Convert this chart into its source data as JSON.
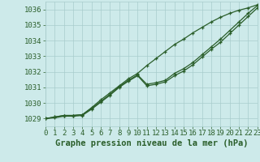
{
  "title": "Graphe pression niveau de la mer (hPa)",
  "xlim": [
    0,
    23
  ],
  "ylim": [
    1028.5,
    1036.5
  ],
  "yticks": [
    1029,
    1030,
    1031,
    1032,
    1033,
    1034,
    1035,
    1036
  ],
  "xticks": [
    0,
    1,
    2,
    3,
    4,
    5,
    6,
    7,
    8,
    9,
    10,
    11,
    12,
    13,
    14,
    15,
    16,
    17,
    18,
    19,
    20,
    21,
    22,
    23
  ],
  "bg_color": "#cdeaea",
  "grid_color": "#a8cccc",
  "line_color": "#2a5e2a",
  "series_straight": [
    1029.0,
    1029.1,
    1029.2,
    1029.2,
    1029.25,
    1029.7,
    1030.2,
    1030.65,
    1031.1,
    1031.55,
    1031.9,
    1032.4,
    1032.85,
    1033.3,
    1033.75,
    1034.1,
    1034.5,
    1034.85,
    1035.2,
    1035.5,
    1035.75,
    1035.95,
    1036.1,
    1036.3
  ],
  "series_mid": [
    1029.0,
    1029.1,
    1029.2,
    1029.2,
    1029.25,
    1029.65,
    1030.1,
    1030.55,
    1031.05,
    1031.45,
    1031.8,
    1031.2,
    1031.3,
    1031.45,
    1031.9,
    1032.2,
    1032.6,
    1033.1,
    1033.6,
    1034.1,
    1034.65,
    1035.2,
    1035.75,
    1036.25
  ],
  "series_low": [
    1029.0,
    1029.05,
    1029.15,
    1029.15,
    1029.2,
    1029.6,
    1030.05,
    1030.5,
    1031.0,
    1031.4,
    1031.75,
    1031.1,
    1031.2,
    1031.35,
    1031.75,
    1032.05,
    1032.45,
    1032.95,
    1033.45,
    1033.9,
    1034.45,
    1035.0,
    1035.55,
    1036.1
  ],
  "tick_fontsize": 6.5,
  "title_fontsize": 7.5
}
